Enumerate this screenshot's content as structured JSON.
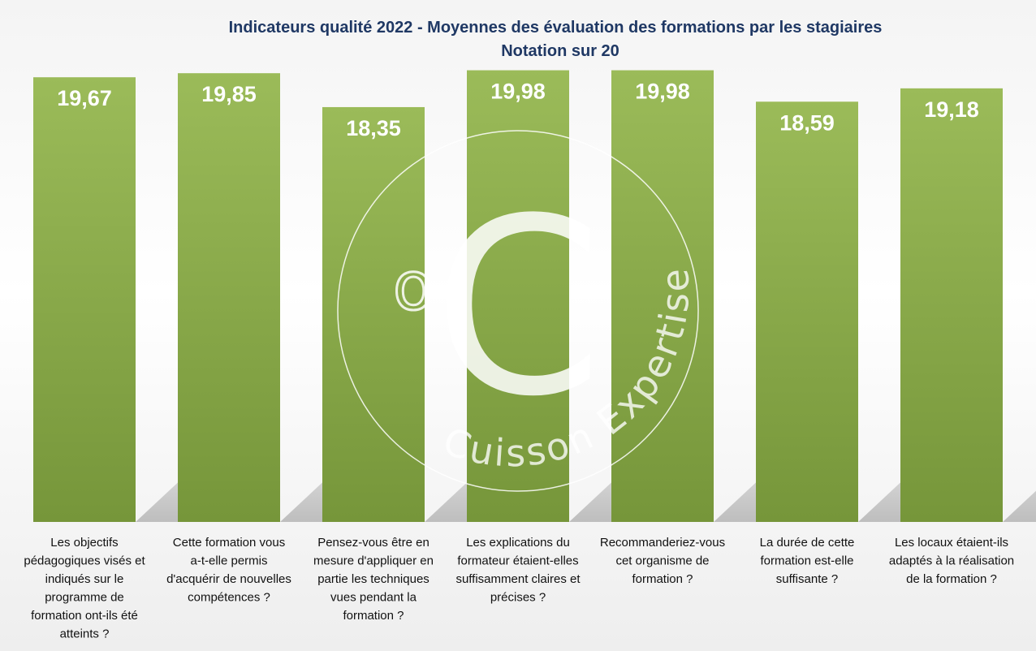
{
  "chart_data": {
    "type": "bar",
    "title": "Indicateurs qualité 2022 - Moyennes des évaluation des formations par les stagiaires",
    "subtitle": "Notation sur 20",
    "xlabel": "",
    "ylabel": "",
    "ylim": [
      0,
      20
    ],
    "grid": false,
    "legend": "none",
    "bar_color": "#9bbb59",
    "bar_color_dark": "#76963a",
    "categories": [
      [
        "Les objectifs",
        "pédagogiques visés et",
        "indiqués sur le",
        "programme de",
        "formation ont-ils été",
        "atteints ?"
      ],
      [
        "Cette formation vous",
        "a-t-elle permis",
        "d'acquérir de nouvelles",
        "compétences ?"
      ],
      [
        "Pensez-vous être en",
        "mesure d'appliquer en",
        "partie les techniques",
        "vues pendant la",
        "formation ?"
      ],
      [
        "Les explications du",
        "formateur étaient-elles",
        "suffisamment claires et",
        "précises ?"
      ],
      [
        "Recommanderiez-vous",
        "cet organisme de",
        "formation ?"
      ],
      [
        "La durée de cette",
        "formation est-elle",
        "suffisante ?"
      ],
      [
        "Les locaux étaient-ils",
        "adaptés à la réalisation",
        "de la formation ?"
      ]
    ],
    "values": [
      19.67,
      19.85,
      18.35,
      19.98,
      19.98,
      18.59,
      19.18
    ],
    "value_labels": [
      "19,67",
      "19,85",
      "18,35",
      "19,98",
      "19,98",
      "18,59",
      "19,18"
    ]
  },
  "watermark": {
    "letter": "C",
    "degree_mark": "o",
    "arc_text": "Cuisson Expertise"
  }
}
